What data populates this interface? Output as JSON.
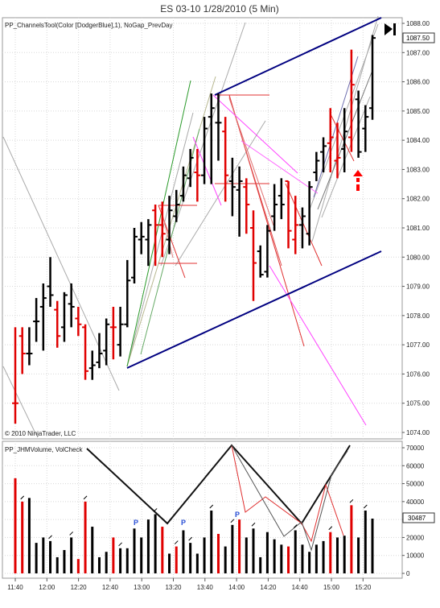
{
  "header": {
    "title": "ES 03-10  1/28/2010 (5 Min)"
  },
  "price_panel": {
    "indicator_label": "PP_ChannelsTool(Color [DodgerBlue],1), NoGap_PrevDay",
    "copyright": "© 2010 NinjaTrader, LLC",
    "last_price": "1087.50",
    "play_icon": "play-end-icon"
  },
  "volume_panel": {
    "indicator_label": "PP_JHMVolume, VolCheck",
    "last_volume": "30487",
    "p_marker_text": "P"
  },
  "colors": {
    "up_bar": "#000000",
    "down_bar": "#e00000",
    "channel": "#000080",
    "signal_arrow": "#ff0000",
    "p_marker": "#2a4fd6",
    "magenta": "#ff44ff",
    "grid": "#d8d8d8"
  },
  "chart_data": [
    {
      "type": "ohlc",
      "name": "price",
      "ylim": [
        1073.8,
        1088.4
      ],
      "yticks": [
        "1074.00",
        "1075.00",
        "1076.00",
        "1077.00",
        "1078.00",
        "1079.00",
        "1080.00",
        "1081.00",
        "1082.00",
        "1083.00",
        "1084.00",
        "1085.00",
        "1086.00",
        "1087.00",
        "1088.00"
      ],
      "xtick_labels": [
        "11:40",
        "12:00",
        "12:20",
        "12:40",
        "13:00",
        "13:20",
        "13:40",
        "14:00",
        "14:20",
        "14:40",
        "15:00",
        "15:20"
      ],
      "bars": [
        [
          1075,
          1077.6,
          1074.3,
          1075,
          "d"
        ],
        [
          1077.3,
          1077.6,
          1076,
          1076.7,
          "d"
        ],
        [
          1076.7,
          1077.6,
          1076.3,
          1076.7,
          "u"
        ],
        [
          1077.8,
          1078.6,
          1077.1,
          1077.8,
          "u"
        ],
        [
          1078.3,
          1079.1,
          1076.8,
          1078.6,
          "u"
        ],
        [
          1079,
          1080,
          1078.3,
          1078.7,
          "u"
        ],
        [
          1078.2,
          1078.5,
          1076.9,
          1077.3,
          "d"
        ],
        [
          1077.6,
          1078.8,
          1077.1,
          1078.7,
          "u"
        ],
        [
          1078.4,
          1079.1,
          1077.6,
          1078.3,
          "u"
        ],
        [
          1077.9,
          1078.3,
          1077.3,
          1077.7,
          "d"
        ],
        [
          1077.6,
          1077.7,
          1075.8,
          1076.1,
          "d"
        ],
        [
          1076.2,
          1076.8,
          1075.8,
          1076.3,
          "u"
        ],
        [
          1076.4,
          1077.4,
          1076.2,
          1076.7,
          "u"
        ],
        [
          1076.8,
          1077.9,
          1076.3,
          1077.7,
          "u"
        ],
        [
          1077.6,
          1078.3,
          1076.5,
          1077.6,
          "d"
        ],
        [
          1077,
          1078.3,
          1076.6,
          1077.7,
          "u"
        ],
        [
          1077.7,
          1079.9,
          1077.6,
          1079.2,
          "u"
        ],
        [
          1079.3,
          1081,
          1079.1,
          1080.7,
          "u"
        ],
        [
          1080.6,
          1081.2,
          1080.1,
          1080.7,
          "u"
        ],
        [
          1080.6,
          1081.3,
          1079.7,
          1081.1,
          "u"
        ],
        [
          1081.6,
          1081.8,
          1079.7,
          1081.1,
          "d"
        ],
        [
          1081.1,
          1081.9,
          1080,
          1080.8,
          "d"
        ],
        [
          1080.6,
          1082.1,
          1080.1,
          1081.6,
          "u"
        ],
        [
          1081.4,
          1082.3,
          1081.2,
          1081.8,
          "u"
        ],
        [
          1082.1,
          1083.1,
          1081.9,
          1082.8,
          "u"
        ],
        [
          1082.7,
          1083.7,
          1082.4,
          1083.4,
          "u"
        ],
        [
          1082.9,
          1083.7,
          1081.9,
          1082.8,
          "d"
        ],
        [
          1082.8,
          1084.8,
          1082.5,
          1084.4,
          "u"
        ],
        [
          1084.8,
          1085.6,
          1082.5,
          1085.1,
          "u"
        ],
        [
          1084.6,
          1085.6,
          1083.3,
          1084.6,
          "u"
        ],
        [
          1084.3,
          1084.8,
          1081.9,
          1082.8,
          "d"
        ],
        [
          1082.6,
          1083.4,
          1081.4,
          1082.4,
          "u"
        ],
        [
          1082.3,
          1083.1,
          1080.7,
          1082.6,
          "u"
        ],
        [
          1082.4,
          1082.7,
          1080.8,
          1081.8,
          "d"
        ],
        [
          1081,
          1081.6,
          1078.5,
          1079.8,
          "d"
        ],
        [
          1080.2,
          1080.4,
          1079.3,
          1079.4,
          "u"
        ],
        [
          1079.5,
          1081.1,
          1079.3,
          1080.9,
          "u"
        ],
        [
          1081.4,
          1082.5,
          1080.9,
          1081.8,
          "u"
        ],
        [
          1082.1,
          1082.7,
          1081.3,
          1081.8,
          "u"
        ],
        [
          1082.6,
          1082.6,
          1080.3,
          1080.9,
          "d"
        ],
        [
          1080.6,
          1082.1,
          1080.1,
          1081.1,
          "d"
        ],
        [
          1081.1,
          1081.7,
          1080.3,
          1081.4,
          "u"
        ],
        [
          1080.8,
          1082.6,
          1080.4,
          1082.4,
          "u"
        ],
        [
          1082.9,
          1083.6,
          1082.6,
          1083.3,
          "u"
        ],
        [
          1083.6,
          1084.1,
          1082.9,
          1083.8,
          "u"
        ],
        [
          1083.9,
          1085.1,
          1082.9,
          1084.1,
          "d"
        ],
        [
          1083.3,
          1084.6,
          1082.7,
          1083.4,
          "d"
        ],
        [
          1083.7,
          1085.1,
          1082.9,
          1084.3,
          "u"
        ],
        [
          1084.1,
          1087.1,
          1083.6,
          1085.9,
          "d"
        ],
        [
          1085.4,
          1085.7,
          1083.4,
          1083.6,
          "u"
        ],
        [
          1084.4,
          1085.2,
          1083.6,
          1084.8,
          "u"
        ],
        [
          1085.1,
          1087.6,
          1084.7,
          1087.5,
          "u"
        ]
      ]
    },
    {
      "type": "bar",
      "name": "volume",
      "ylim": [
        0,
        72000
      ],
      "yticks": [
        "0",
        "10000",
        "20000",
        "30000",
        "40000",
        "50000",
        "60000",
        "70000"
      ],
      "values": [
        53000,
        40000,
        42000,
        17000,
        20000,
        18000,
        9000,
        13000,
        20000,
        8000,
        40000,
        26000,
        9000,
        12000,
        20000,
        14000,
        14000,
        25000,
        20000,
        30000,
        33000,
        26000,
        11000,
        15000,
        24000,
        17000,
        11000,
        20000,
        35000,
        22000,
        15000,
        27000,
        30000,
        20000,
        25000,
        9000,
        23000,
        19000,
        16000,
        15000,
        24000,
        16000,
        12000,
        16000,
        18000,
        23000,
        20000,
        21000,
        38000,
        20000,
        35000,
        30487
      ],
      "colors": [
        "d",
        "d",
        "u",
        "u",
        "u",
        "u",
        "u",
        "u",
        "u",
        "d",
        "d",
        "u",
        "u",
        "u",
        "d",
        "u",
        "u",
        "u",
        "u",
        "u",
        "u",
        "d",
        "u",
        "d",
        "u",
        "u",
        "u",
        "u",
        "u",
        "d",
        "u",
        "u",
        "d",
        "u",
        "u",
        "u",
        "u",
        "u",
        "u",
        "d",
        "u",
        "u",
        "u",
        "u",
        "u",
        "d",
        "u",
        "u",
        "d",
        "u",
        "u",
        "u"
      ]
    }
  ]
}
